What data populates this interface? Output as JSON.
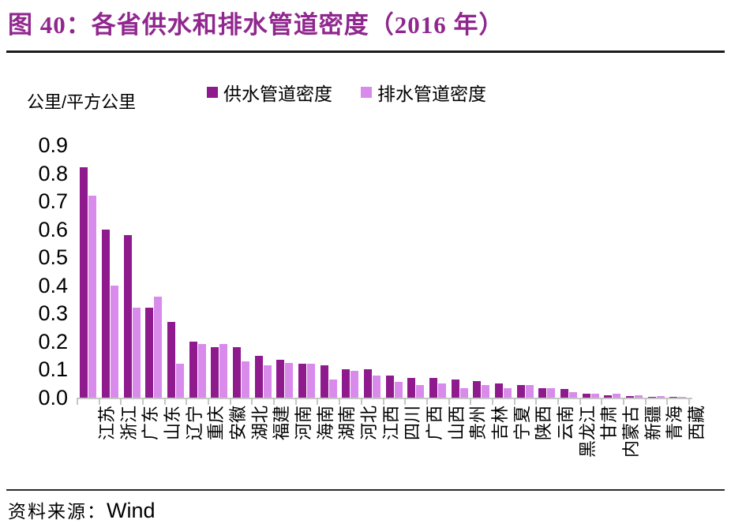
{
  "header": {
    "title": "图 40：各省供水和排水管道密度（2016 年）"
  },
  "chart": {
    "unit_label": "公里/平方公里"
  },
  "footer": {
    "source_label": "资料来源：",
    "source_value": "Wind"
  },
  "colors": {
    "title": "#90278E",
    "supply": "#8E1A8E",
    "drain": "#D98BEC",
    "axis": "#C6C6C6",
    "rule_top": "#1A1A1A",
    "rule_bottom": "#2B2B2B"
  },
  "chart_data": {
    "type": "bar",
    "title": "各省供水和排水管道密度（2016 年）",
    "ylabel": "公里/平方公里",
    "xlabel": "",
    "ylim": [
      0,
      0.9
    ],
    "ytick_step": 0.1,
    "grid": false,
    "legend_position": "top",
    "categories": [
      "江苏",
      "浙江",
      "广东",
      "山东",
      "辽宁",
      "重庆",
      "安徽",
      "湖北",
      "福建",
      "河南",
      "海南",
      "湖南",
      "河北",
      "江西",
      "四川",
      "广西",
      "山西",
      "贵州",
      "吉林",
      "宁夏",
      "陕西",
      "云南",
      "黑龙江",
      "甘肃",
      "内蒙古",
      "新疆",
      "青海",
      "西藏"
    ],
    "series": [
      {
        "name": "供水管道密度",
        "color": "#8E1A8E",
        "values": [
          0.82,
          0.6,
          0.58,
          0.32,
          0.27,
          0.2,
          0.18,
          0.18,
          0.15,
          0.135,
          0.12,
          0.115,
          0.1,
          0.1,
          0.08,
          0.07,
          0.07,
          0.065,
          0.06,
          0.05,
          0.045,
          0.035,
          0.03,
          0.013,
          0.008,
          0.006,
          0.004,
          0.002
        ]
      },
      {
        "name": "排水管道密度",
        "color": "#D98BEC",
        "values": [
          0.72,
          0.4,
          0.32,
          0.36,
          0.12,
          0.19,
          0.19,
          0.13,
          0.115,
          0.125,
          0.12,
          0.065,
          0.095,
          0.08,
          0.055,
          0.045,
          0.05,
          0.035,
          0.045,
          0.035,
          0.045,
          0.035,
          0.02,
          0.014,
          0.014,
          0.008,
          0.005,
          0.003
        ]
      }
    ]
  }
}
